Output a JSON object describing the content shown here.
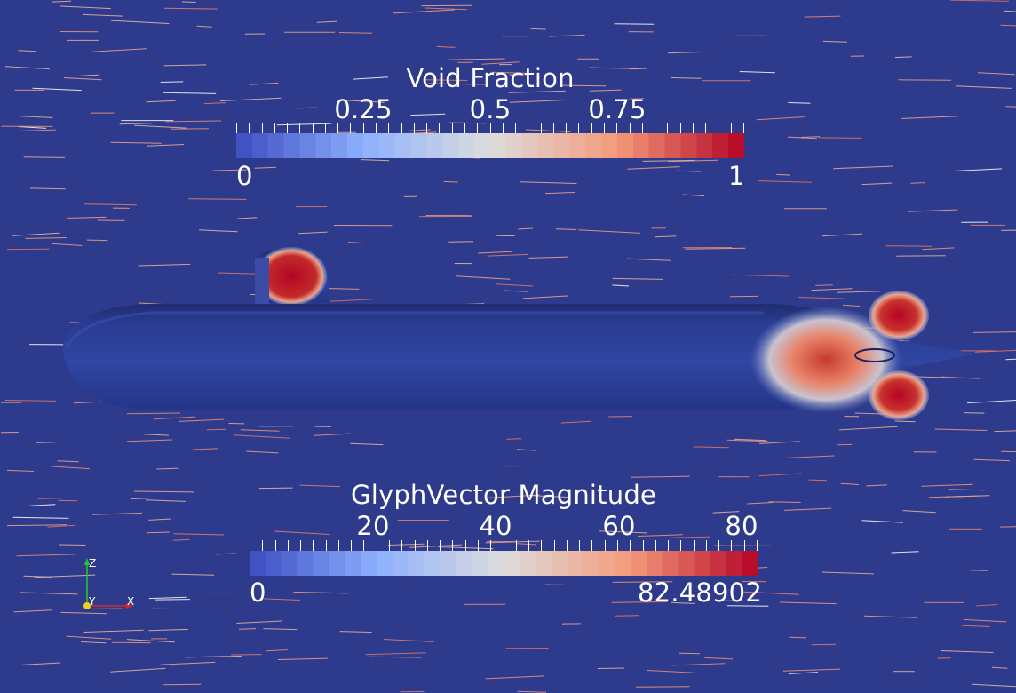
{
  "colors": {
    "background": "#2e3b8c",
    "hull": "#2a3f96",
    "low": "#3b4cc0",
    "mid": "#dddddd",
    "high": "#b40426",
    "glyph": "#f4a98a"
  },
  "void_fraction_bar": {
    "title": "Void Fraction",
    "ticks": [
      "0.25",
      "0.5",
      "0.75"
    ],
    "range_min": "0",
    "range_max": "1"
  },
  "glyph_bar": {
    "title": "GlyphVector Magnitude",
    "ticks": [
      "20",
      "40",
      "60",
      "80"
    ],
    "range_min": "0",
    "range_max": "82.48902"
  },
  "orientation_axes": {
    "z": "Z",
    "y": "Y",
    "x": "X"
  }
}
